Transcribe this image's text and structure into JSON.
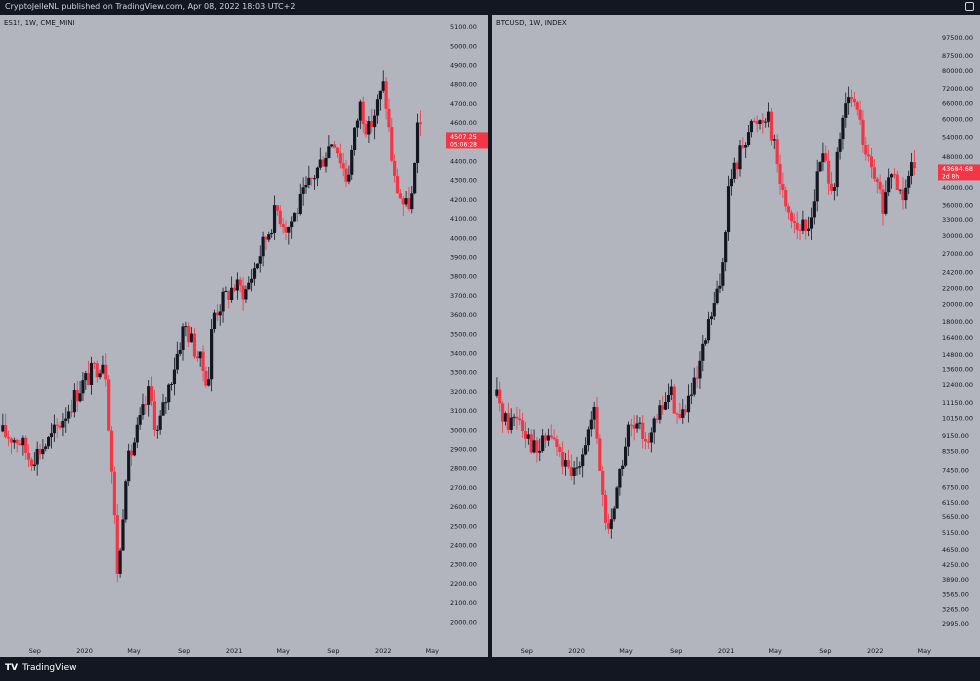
{
  "header": {
    "published_line": "CryptoJelleNL published on TradingView.com, Apr 08, 2022 18:03 UTC+2"
  },
  "footer": {
    "brand": "TradingView",
    "logo_glyph": "TV"
  },
  "colors": {
    "background": "#b2b5be",
    "up": "#131722",
    "down": "#f23645",
    "frame": "#131722"
  },
  "chart_data": [
    {
      "type": "candlestick",
      "symbol": "ES1!, 1W, CME_MINI",
      "scale": "linear",
      "ylim": [
        1900,
        5150
      ],
      "y_ticks": [
        2000,
        2100,
        2200,
        2300,
        2400,
        2500,
        2600,
        2700,
        2800,
        2900,
        3000,
        3100,
        3200,
        3300,
        3400,
        3500,
        3600,
        3700,
        3800,
        3900,
        4000,
        4100,
        4200,
        4300,
        4400,
        4500,
        4600,
        4700,
        4800,
        4900,
        5000,
        5100
      ],
      "x_labels": [
        "Sep",
        "2020",
        "May",
        "Sep",
        "2021",
        "May",
        "Sep",
        "2022",
        "May"
      ],
      "last_price": {
        "price": "4507.25",
        "countdown": "05:06:28",
        "value": 4507.25
      },
      "path_dates": [
        "2019-06-15",
        "2019-07-25",
        "2019-08-20",
        "2019-10-10",
        "2019-12-20",
        "2020-02-20",
        "2020-03-23",
        "2020-04-10",
        "2020-06-08",
        "2020-06-26",
        "2020-09-02",
        "2020-10-30",
        "2020-11-10",
        "2020-12-31",
        "2021-01-29",
        "2021-04-15",
        "2021-05-12",
        "2021-09-02",
        "2021-10-04",
        "2021-11-05",
        "2021-11-26",
        "2022-01-03",
        "2022-01-28",
        "2022-02-24",
        "2022-03-14",
        "2022-03-29",
        "2022-04-08"
      ],
      "path_values": [
        2980,
        2950,
        2850,
        2950,
        3220,
        3380,
        2200,
        2780,
        3200,
        2980,
        3550,
        3250,
        3600,
        3750,
        3720,
        4150,
        4050,
        4530,
        4300,
        4700,
        4550,
        4800,
        4300,
        4150,
        4220,
        4630,
        4507
      ]
    },
    {
      "type": "candlestick",
      "symbol": "BTCUSD, 1W, INDEX",
      "scale": "log",
      "ylim": [
        2700,
        110000
      ],
      "y_ticks": [
        2995,
        3265,
        3565,
        3890,
        4250,
        4650,
        5150,
        5650,
        6150,
        6750,
        7450,
        8350,
        9150,
        10150,
        11150,
        12400,
        13600,
        14800,
        16400,
        18000,
        20000,
        22000,
        24200,
        27000,
        30000,
        33000,
        36000,
        40000,
        44000,
        48000,
        54000,
        60000,
        66000,
        72000,
        80000,
        87500,
        97500
      ],
      "x_labels": [
        "Sep",
        "2020",
        "May",
        "Sep",
        "2021",
        "May",
        "Sep",
        "2022",
        "May"
      ],
      "last_price": {
        "price": "43684.68",
        "countdown": "2d 8h",
        "value": 43684.68
      },
      "path_dates": [
        "2019-06-20",
        "2019-07-15",
        "2019-08-10",
        "2019-09-25",
        "2019-10-28",
        "2019-12-18",
        "2020-02-13",
        "2020-03-16",
        "2020-05-08",
        "2020-07-01",
        "2020-08-17",
        "2020-09-08",
        "2020-10-21",
        "2020-11-24",
        "2020-12-17",
        "2021-01-08",
        "2021-02-21",
        "2021-04-14",
        "2021-05-20",
        "2021-06-22",
        "2021-07-20",
        "2021-08-23",
        "2021-09-21",
        "2021-10-20",
        "2021-11-10",
        "2021-12-10",
        "2022-01-24",
        "2022-02-10",
        "2022-03-07",
        "2022-03-29",
        "2022-04-08"
      ],
      "path_values": [
        11500,
        9800,
        10500,
        8200,
        9300,
        7000,
        10300,
        5000,
        9500,
        9200,
        12000,
        10000,
        12500,
        18500,
        22000,
        40000,
        56000,
        63000,
        38000,
        32000,
        30500,
        49000,
        40000,
        64000,
        68000,
        48000,
        35000,
        44000,
        38000,
        47500,
        43684
      ]
    }
  ]
}
